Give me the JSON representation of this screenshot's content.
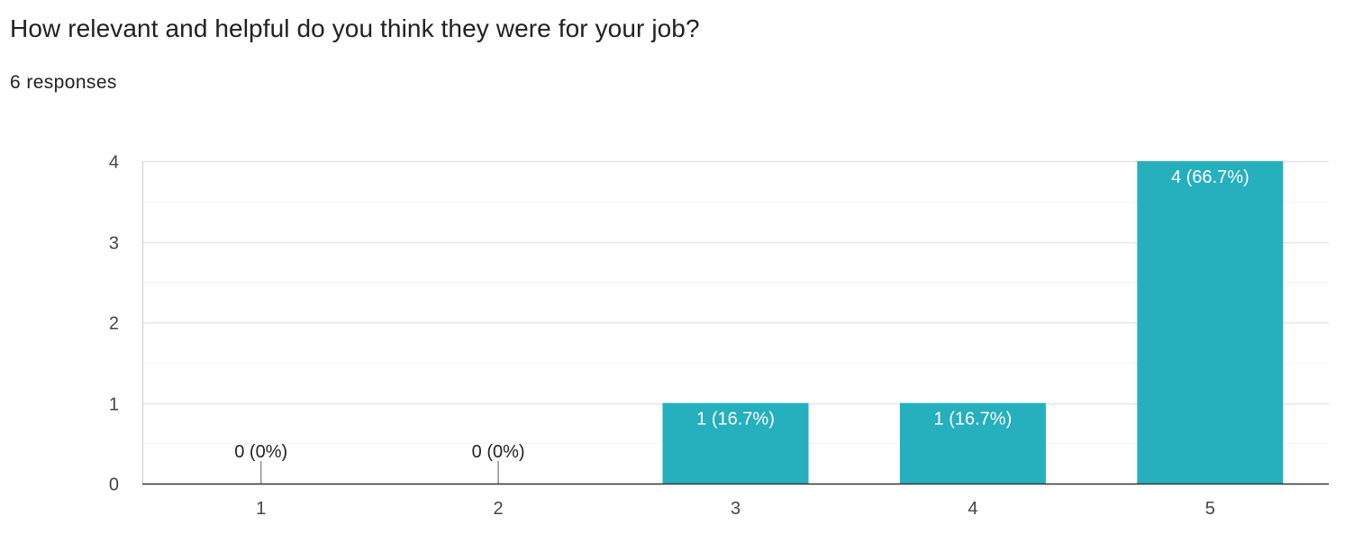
{
  "question": {
    "title": "How relevant and helpful do you think they were for your job?",
    "responses": "6 responses"
  },
  "chart_data": {
    "type": "bar",
    "categories": [
      "1",
      "2",
      "3",
      "4",
      "5"
    ],
    "values": [
      0,
      0,
      1,
      1,
      4
    ],
    "data_labels": [
      "0 (0%)",
      "0 (0%)",
      "1 (16.7%)",
      "1 (16.7%)",
      "4 (66.7%)"
    ],
    "y_ticks": [
      "0",
      "1",
      "2",
      "3",
      "4"
    ],
    "ylim": [
      0,
      4
    ],
    "grid": true,
    "bar_color": "#26AFBD"
  }
}
